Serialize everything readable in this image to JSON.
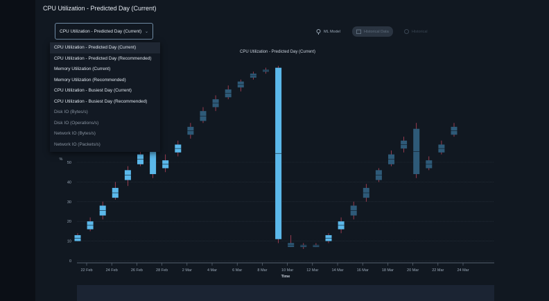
{
  "panel_title": "CPU Utilization - Predicted Day (Current)",
  "select": {
    "value": "CPU Utilization - Predicted Day (Current)"
  },
  "toggles": {
    "ml_model": "ML Model",
    "historical": "Historical Data",
    "third": "Historical"
  },
  "dropdown": [
    "CPU Utilization - Predicted Day (Current)",
    "CPU Utilization - Predicted Day (Recommended)",
    "Memory Utilization (Current)",
    "Memory Utilization (Recommended)",
    "CPU Utilization - Busiest Day (Current)",
    "CPU Utilization - Busiest Day (Recommended)",
    "Disk IO (Bytes/s)",
    "Disk IO (Operations/s)",
    "Network IO (Bytes/s)",
    "Network IO (Packets/s)"
  ],
  "colors": {
    "bright": "#5bb8ea",
    "muted": "#2e5a78",
    "grid": "#2a3441",
    "axis": "#6d7a89"
  },
  "chart_data": {
    "type": "candlestick",
    "title": "CPU Utilization - Predicted Day (Current)",
    "xlabel": "Time",
    "ylabel": "%",
    "ylim": [
      0,
      100
    ],
    "yticks": [
      0,
      10,
      20,
      30,
      40,
      50
    ],
    "xticks": [
      "22 Feb",
      "24 Feb",
      "26 Feb",
      "28 Feb",
      "2 Mar",
      "4 Mar",
      "6 Mar",
      "8 Mar",
      "10 Mar",
      "12 Mar",
      "14 Mar",
      "16 Mar",
      "18 Mar",
      "20 Mar",
      "22 Mar",
      "24 Mar"
    ],
    "candles": [
      {
        "x": 0,
        "low": 10,
        "q1": 10,
        "q3": 13,
        "high": 14,
        "style": "bright"
      },
      {
        "x": 1,
        "low": 15,
        "q1": 16,
        "q3": 20,
        "high": 22,
        "style": "bright"
      },
      {
        "x": 2,
        "low": 21,
        "q1": 23,
        "q3": 28,
        "high": 30,
        "style": "bright"
      },
      {
        "x": 3,
        "low": 31,
        "q1": 32,
        "q3": 37,
        "high": 40,
        "style": "bright"
      },
      {
        "x": 4,
        "low": 38,
        "q1": 41,
        "q3": 46,
        "high": 48,
        "style": "bright"
      },
      {
        "x": 5,
        "low": 48,
        "q1": 49,
        "q3": 54,
        "high": 56,
        "style": "bright"
      },
      {
        "x": 6,
        "low": 42,
        "q1": 44,
        "q3": 67,
        "high": 70,
        "style": "bright"
      },
      {
        "x": 7,
        "low": 45,
        "q1": 47,
        "q3": 51,
        "high": 54,
        "style": "bright"
      },
      {
        "x": 8,
        "low": 53,
        "q1": 55,
        "q3": 59,
        "high": 61,
        "style": "bright"
      },
      {
        "x": 9,
        "low": 62,
        "q1": 64,
        "q3": 68,
        "high": 70,
        "style": "muted"
      },
      {
        "x": 10,
        "low": 70,
        "q1": 71,
        "q3": 76,
        "high": 78,
        "style": "muted"
      },
      {
        "x": 11,
        "low": 76,
        "q1": 78,
        "q3": 82,
        "high": 84,
        "style": "muted"
      },
      {
        "x": 12,
        "low": 82,
        "q1": 83,
        "q3": 87,
        "high": 89,
        "style": "muted"
      },
      {
        "x": 13,
        "low": 86,
        "q1": 88,
        "q3": 91,
        "high": 92,
        "style": "muted"
      },
      {
        "x": 14,
        "low": 92,
        "q1": 93,
        "q3": 95,
        "high": 96,
        "style": "muted"
      },
      {
        "x": 15,
        "low": 95,
        "q1": 96,
        "q3": 97,
        "high": 98,
        "style": "muted"
      },
      {
        "x": 16,
        "low": 9,
        "q1": 11,
        "q3": 98,
        "high": 99,
        "style": "bright"
      },
      {
        "x": 17,
        "low": 7,
        "q1": 7,
        "q3": 9,
        "high": 13,
        "style": "muted"
      },
      {
        "x": 18,
        "low": 6,
        "q1": 7,
        "q3": 8,
        "high": 9,
        "style": "muted"
      },
      {
        "x": 19,
        "low": 7,
        "q1": 7,
        "q3": 8,
        "high": 9,
        "style": "muted"
      },
      {
        "x": 20,
        "low": 9,
        "q1": 10,
        "q3": 13,
        "high": 14,
        "style": "bright"
      },
      {
        "x": 21,
        "low": 14,
        "q1": 16,
        "q3": 20,
        "high": 22,
        "style": "bright"
      },
      {
        "x": 22,
        "low": 21,
        "q1": 23,
        "q3": 28,
        "high": 30,
        "style": "muted"
      },
      {
        "x": 23,
        "low": 30,
        "q1": 32,
        "q3": 37,
        "high": 39,
        "style": "muted"
      },
      {
        "x": 24,
        "low": 40,
        "q1": 41,
        "q3": 46,
        "high": 47,
        "style": "muted"
      },
      {
        "x": 25,
        "low": 48,
        "q1": 49,
        "q3": 54,
        "high": 56,
        "style": "muted"
      },
      {
        "x": 26,
        "low": 55,
        "q1": 57,
        "q3": 61,
        "high": 63,
        "style": "muted"
      },
      {
        "x": 27,
        "low": 42,
        "q1": 44,
        "q3": 67,
        "high": 70,
        "style": "muted"
      },
      {
        "x": 28,
        "low": 46,
        "q1": 47,
        "q3": 51,
        "high": 53,
        "style": "muted"
      },
      {
        "x": 29,
        "low": 54,
        "q1": 55,
        "q3": 59,
        "high": 61,
        "style": "muted"
      },
      {
        "x": 30,
        "low": 63,
        "q1": 64,
        "q3": 68,
        "high": 70,
        "style": "muted"
      }
    ]
  }
}
